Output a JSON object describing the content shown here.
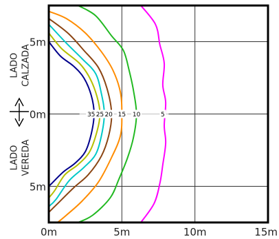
{
  "chart_data": {
    "type": "line",
    "title": "",
    "xlabel": "",
    "ylabel": "",
    "xlim": [
      0,
      15
    ],
    "ylim": [
      -7.5,
      7.5
    ],
    "grid": true,
    "x_ticks": [
      {
        "value": 0,
        "label": "0m"
      },
      {
        "value": 5,
        "label": "5m"
      },
      {
        "value": 10,
        "label": "10m"
      },
      {
        "value": 15,
        "label": "15m"
      }
    ],
    "y_ticks": [
      {
        "value": 5,
        "label": "5m"
      },
      {
        "value": 0,
        "label": "0m"
      },
      {
        "value": -5,
        "label": "5m"
      }
    ],
    "side_labels": {
      "upper": [
        "LADO",
        "CALZADA"
      ],
      "lower": [
        "LADO",
        "VEREDA"
      ]
    },
    "double_arrow_color": "#000000",
    "contour_center_y": 0,
    "series": [
      {
        "label": "35",
        "color": "#00008b",
        "points": [
          [
            0,
            5.0
          ],
          [
            0.8,
            4.0
          ],
          [
            1.7,
            3.3
          ],
          [
            2.4,
            2.5
          ],
          [
            2.9,
            1.3
          ],
          [
            3.1,
            0.0
          ],
          [
            2.9,
            -1.4
          ],
          [
            2.5,
            -2.6
          ],
          [
            1.8,
            -3.4
          ],
          [
            1.0,
            -4.0
          ],
          [
            0.2,
            -4.8
          ],
          [
            0,
            -5.0
          ]
        ]
      },
      {
        "label": "25",
        "color": "#b5c000",
        "points": [
          [
            0,
            5.6
          ],
          [
            0.9,
            4.5
          ],
          [
            2.1,
            3.5
          ],
          [
            2.8,
            2.5
          ],
          [
            3.3,
            1.2
          ],
          [
            3.5,
            0.0
          ],
          [
            3.3,
            -1.2
          ],
          [
            2.8,
            -2.6
          ],
          [
            2.0,
            -3.5
          ],
          [
            1.1,
            -4.2
          ],
          [
            0.4,
            -5.3
          ],
          [
            0,
            -5.8
          ]
        ]
      },
      {
        "label": "cyan",
        "color": "#00c8c8",
        "points": [
          [
            0,
            6.2
          ],
          [
            1.2,
            4.9
          ],
          [
            2.3,
            3.8
          ],
          [
            3.2,
            2.8
          ],
          [
            3.6,
            1.4
          ],
          [
            3.8,
            0.0
          ],
          [
            3.6,
            -1.5
          ],
          [
            3.2,
            -2.8
          ],
          [
            2.4,
            -3.7
          ],
          [
            1.4,
            -4.6
          ],
          [
            0.5,
            -5.9
          ],
          [
            0,
            -6.4
          ]
        ]
      },
      {
        "label": "20",
        "color": "#8b4513",
        "points": [
          [
            0,
            6.6
          ],
          [
            1.3,
            5.6
          ],
          [
            2.4,
            4.4
          ],
          [
            3.4,
            3.2
          ],
          [
            4.0,
            1.7
          ],
          [
            4.3,
            0.0
          ],
          [
            4.1,
            -1.5
          ],
          [
            3.6,
            -2.9
          ],
          [
            2.7,
            -4.2
          ],
          [
            1.7,
            -5.1
          ],
          [
            0.6,
            -6.2
          ],
          [
            0,
            -6.8
          ]
        ]
      },
      {
        "label": "15",
        "color": "#ff8c00",
        "points": [
          [
            0,
            7.1
          ],
          [
            1.2,
            6.6
          ],
          [
            2.5,
            5.6
          ],
          [
            3.6,
            4.3
          ],
          [
            4.4,
            3.0
          ],
          [
            4.9,
            1.5
          ],
          [
            5.0,
            0.0
          ],
          [
            4.9,
            -1.5
          ],
          [
            4.3,
            -3.0
          ],
          [
            3.4,
            -4.7
          ],
          [
            2.3,
            -6.0
          ],
          [
            1.2,
            -7.0
          ],
          [
            0.6,
            -7.5
          ]
        ]
      },
      {
        "label": "10",
        "color": "#22b922",
        "points": [
          [
            2.0,
            7.5
          ],
          [
            3.2,
            6.8
          ],
          [
            4.3,
            5.4
          ],
          [
            5.1,
            4.4
          ],
          [
            5.5,
            3.0
          ],
          [
            5.8,
            1.6
          ],
          [
            6.0,
            0.0
          ],
          [
            5.8,
            -1.6
          ],
          [
            5.4,
            -3.0
          ],
          [
            4.8,
            -4.5
          ],
          [
            4.2,
            -5.8
          ],
          [
            3.0,
            -7.0
          ],
          [
            2.0,
            -7.5
          ]
        ]
      },
      {
        "label": "5",
        "color": "#ff00ff",
        "points": [
          [
            6.3,
            7.5
          ],
          [
            7.3,
            6.2
          ],
          [
            7.6,
            4.8
          ],
          [
            7.9,
            3.5
          ],
          [
            7.8,
            2.0
          ],
          [
            8.0,
            0.8
          ],
          [
            7.9,
            -0.8
          ],
          [
            8.0,
            -2.0
          ],
          [
            7.8,
            -3.5
          ],
          [
            7.6,
            -4.8
          ],
          [
            7.2,
            -6.2
          ],
          [
            6.3,
            -7.5
          ]
        ]
      }
    ],
    "contour_labels": [
      {
        "text": "35",
        "x": 2.9,
        "y": 0
      },
      {
        "text": "25",
        "x": 3.5,
        "y": 0
      },
      {
        "text": "20",
        "x": 4.1,
        "y": 0
      },
      {
        "text": "15",
        "x": 5.0,
        "y": 0
      },
      {
        "text": "10",
        "x": 6.0,
        "y": 0
      },
      {
        "text": "5",
        "x": 7.8,
        "y": 0
      }
    ]
  }
}
